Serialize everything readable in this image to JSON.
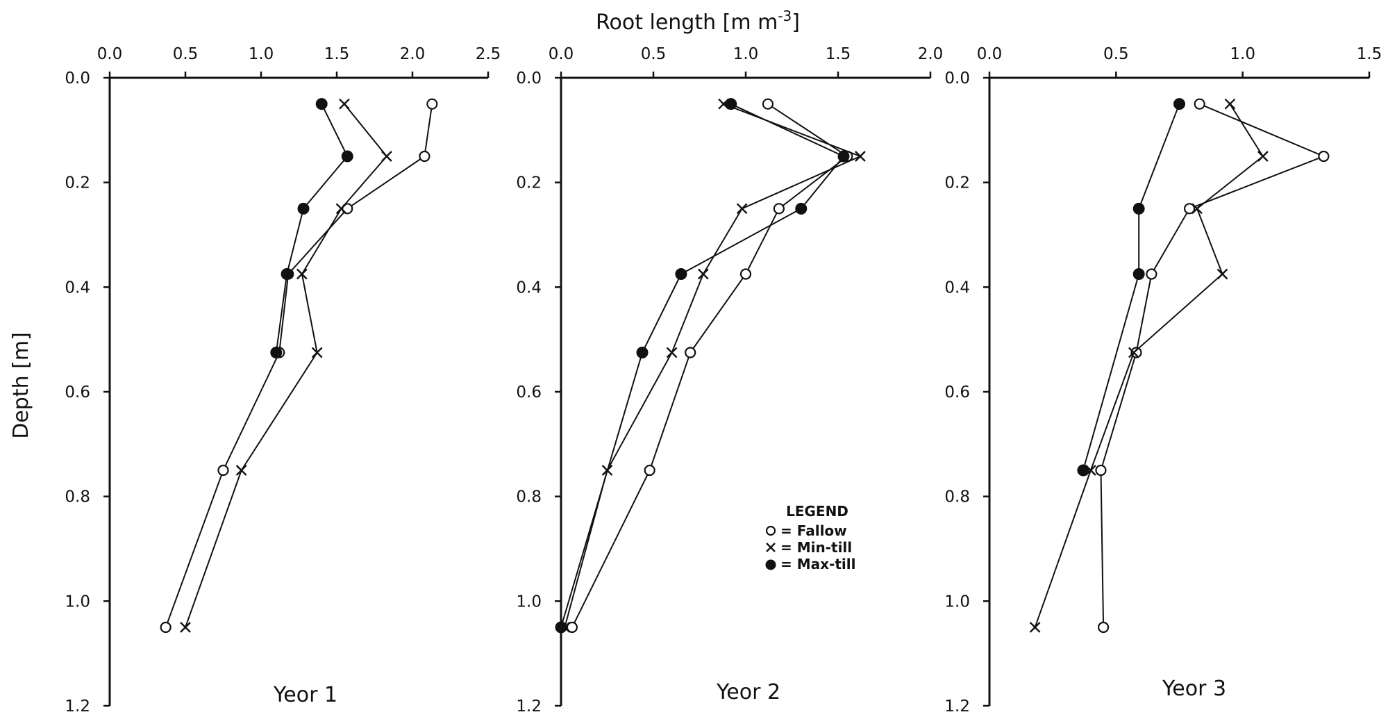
{
  "figure": {
    "top_axis_title": "Root length [m m",
    "top_axis_title_sup": "-3",
    "top_axis_title_end": "]",
    "left_axis_title": "Depth [m]"
  },
  "legend": {
    "title": "LEGEND",
    "entries": [
      "= Fallow",
      "= Min-till",
      "= Max-till"
    ]
  },
  "colors": {
    "ink": "#111111",
    "background": "#ffffff"
  },
  "chart_data": [
    {
      "type": "line",
      "title": "Yeor 1",
      "xlabel": "Root length [m m-3]",
      "ylabel": "Depth [m]",
      "xlim": [
        0.0,
        2.5
      ],
      "ylim": [
        0.0,
        1.2
      ],
      "x_axis_position": "top",
      "y_inverted": true,
      "xticks": [
        "0.0",
        "0.5",
        "1.0",
        "1.5",
        "2.0",
        "2.5"
      ],
      "yticks": [
        "0.0",
        "0.2",
        "0.4",
        "0.6",
        "0.8",
        "1.0",
        "1.2"
      ],
      "grid": false,
      "series": [
        {
          "name": "Fallow",
          "marker": "open-circle",
          "depth": [
            0.05,
            0.15,
            0.25,
            0.375,
            0.525,
            0.75,
            1.05
          ],
          "root_length": [
            2.13,
            2.08,
            1.57,
            1.18,
            1.12,
            0.75,
            0.37
          ]
        },
        {
          "name": "Min-till",
          "marker": "cross",
          "depth": [
            0.05,
            0.15,
            0.25,
            0.375,
            0.525,
            0.75,
            1.05
          ],
          "root_length": [
            1.55,
            1.83,
            1.53,
            1.27,
            1.37,
            0.87,
            0.5
          ]
        },
        {
          "name": "Max-till",
          "marker": "filled-circle",
          "depth": [
            0.05,
            0.15,
            0.25,
            0.375,
            0.525
          ],
          "root_length": [
            1.4,
            1.57,
            1.28,
            1.17,
            1.1
          ]
        }
      ]
    },
    {
      "type": "line",
      "title": "Yeor 2",
      "xlabel": "Root length [m m-3]",
      "ylabel": "Depth [m]",
      "xlim": [
        0.0,
        2.0
      ],
      "ylim": [
        0.0,
        1.2
      ],
      "x_axis_position": "top",
      "y_inverted": true,
      "xticks": [
        "0.0",
        "0.5",
        "1.0",
        "1.5",
        "2.0"
      ],
      "yticks": [
        "0.0",
        "0.2",
        "0.4",
        "0.6",
        "0.8",
        "1.0",
        "1.2"
      ],
      "grid": false,
      "series": [
        {
          "name": "Fallow",
          "marker": "open-circle",
          "depth": [
            0.05,
            0.15,
            0.25,
            0.375,
            0.525,
            0.75,
            1.05
          ],
          "root_length": [
            1.12,
            1.55,
            1.18,
            1.0,
            0.7,
            0.48,
            0.06
          ]
        },
        {
          "name": "Min-till",
          "marker": "cross",
          "depth": [
            0.05,
            0.15,
            0.25,
            0.375,
            0.525,
            0.75,
            1.05
          ],
          "root_length": [
            0.88,
            1.62,
            0.98,
            0.77,
            0.6,
            0.25,
            0.02
          ]
        },
        {
          "name": "Max-till",
          "marker": "filled-circle",
          "depth": [
            0.05,
            0.15,
            0.25,
            0.375,
            0.525,
            1.05
          ],
          "root_length": [
            0.92,
            1.53,
            1.3,
            0.65,
            0.44,
            0.0
          ]
        }
      ]
    },
    {
      "type": "line",
      "title": "Yeor 3",
      "xlabel": "Root length [m m-3]",
      "ylabel": "Depth [m]",
      "xlim": [
        0.0,
        1.5
      ],
      "ylim": [
        0.0,
        1.2
      ],
      "x_axis_position": "top",
      "y_inverted": true,
      "xticks": [
        "0.0",
        "0.5",
        "1.0",
        "1.5"
      ],
      "yticks": [
        "0.0",
        "0.2",
        "0.4",
        "0.6",
        "0.8",
        "1.0",
        "1.2"
      ],
      "grid": false,
      "series": [
        {
          "name": "Fallow",
          "marker": "open-circle",
          "depth": [
            0.05,
            0.15,
            0.25,
            0.375,
            0.525,
            0.75,
            1.05
          ],
          "root_length": [
            0.83,
            1.32,
            0.79,
            0.64,
            0.58,
            0.44,
            0.45
          ]
        },
        {
          "name": "Min-till",
          "marker": "cross",
          "depth": [
            0.05,
            0.15,
            0.25,
            0.375,
            0.525,
            0.75,
            1.05
          ],
          "root_length": [
            0.95,
            1.08,
            0.82,
            0.92,
            0.57,
            0.4,
            0.18
          ]
        },
        {
          "name": "Max-till",
          "marker": "filled-circle",
          "depth": [
            0.05,
            0.25,
            0.375,
            0.75
          ],
          "root_length": [
            0.75,
            0.59,
            0.59,
            0.37
          ]
        }
      ]
    }
  ]
}
